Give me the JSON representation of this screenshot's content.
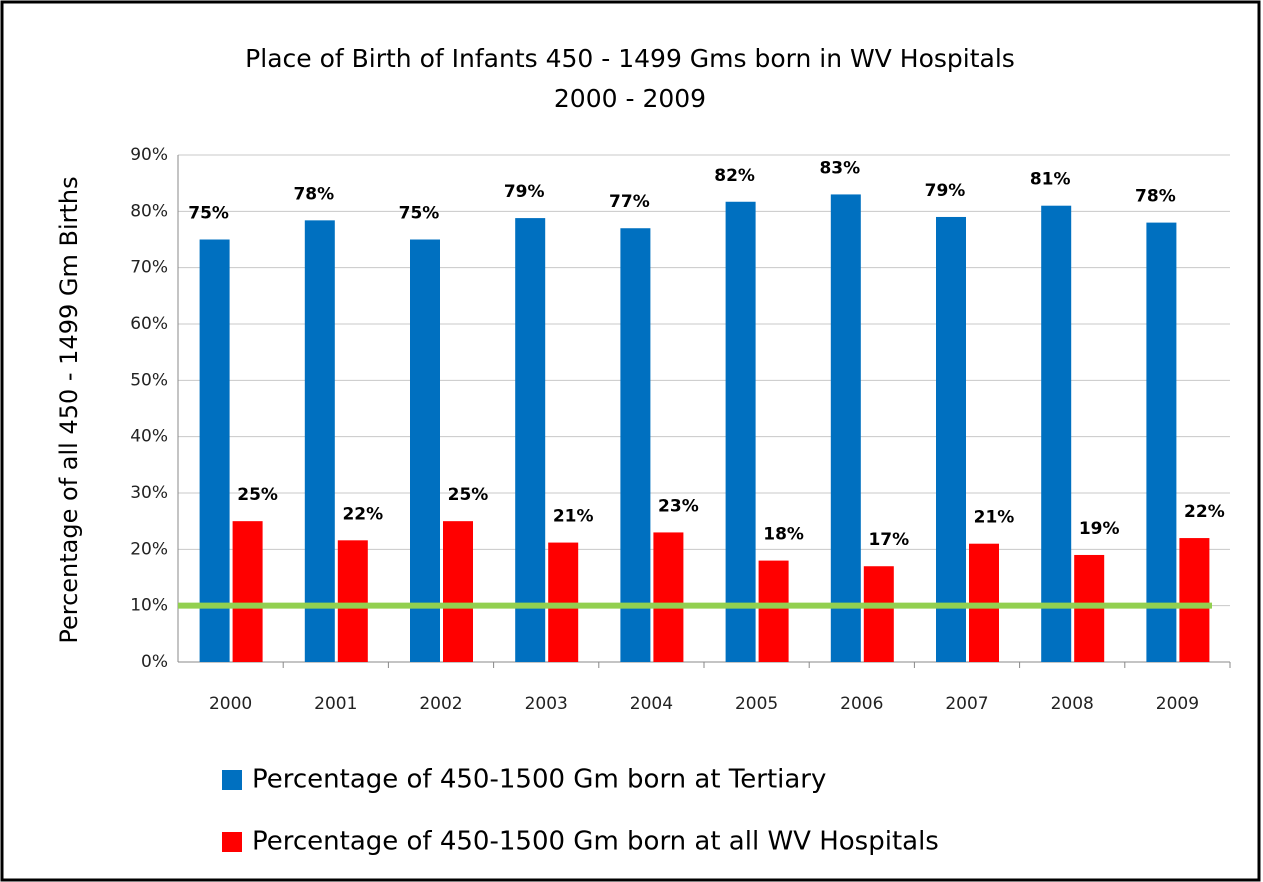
{
  "chart_data": {
    "type": "bar",
    "title": "Place of Birth of Infants 450 - 1499 Gms  born in WV Hospitals",
    "subtitle": "2000 - 2009",
    "y_label": "Percentage of all 450 - 1499 Gm Births",
    "categories": [
      "2000",
      "2001",
      "2002",
      "2003",
      "2004",
      "2005",
      "2006",
      "2007",
      "2008",
      "2009"
    ],
    "series": [
      {
        "name": "Percentage of 450-1500 Gm born at Tertiary",
        "color": "#0070c0",
        "values": [
          75,
          78.4,
          75,
          78.8,
          77,
          81.7,
          83,
          79,
          81,
          78
        ],
        "value_labels": [
          "75%",
          "78%",
          "75%",
          "79%",
          "77%",
          "82%",
          "83%",
          "79%",
          "81%",
          "78%"
        ]
      },
      {
        "name": "Percentage of 450-1500 Gm born at all WV Hospitals",
        "color": "#ff0000",
        "values": [
          25,
          21.6,
          25,
          21.2,
          23,
          18,
          17,
          21,
          19,
          22
        ],
        "value_labels": [
          "25%",
          "22%",
          "25%",
          "21%",
          "23%",
          "18%",
          "17%",
          "21%",
          "19%",
          "22%"
        ]
      }
    ],
    "reference_line": {
      "value": 10,
      "color": "#92d050"
    },
    "ylim": [
      0,
      90
    ],
    "yticks": [
      {
        "value": 0,
        "label": "0%"
      },
      {
        "value": 10,
        "label": "10%"
      },
      {
        "value": 20,
        "label": "20%"
      },
      {
        "value": 30,
        "label": "30%"
      },
      {
        "value": 40,
        "label": "40%"
      },
      {
        "value": 50,
        "label": "50%"
      },
      {
        "value": 60,
        "label": "60%"
      },
      {
        "value": 70,
        "label": "70%"
      },
      {
        "value": 80,
        "label": "80%"
      },
      {
        "value": 90,
        "label": "90%"
      }
    ],
    "grid": true
  }
}
